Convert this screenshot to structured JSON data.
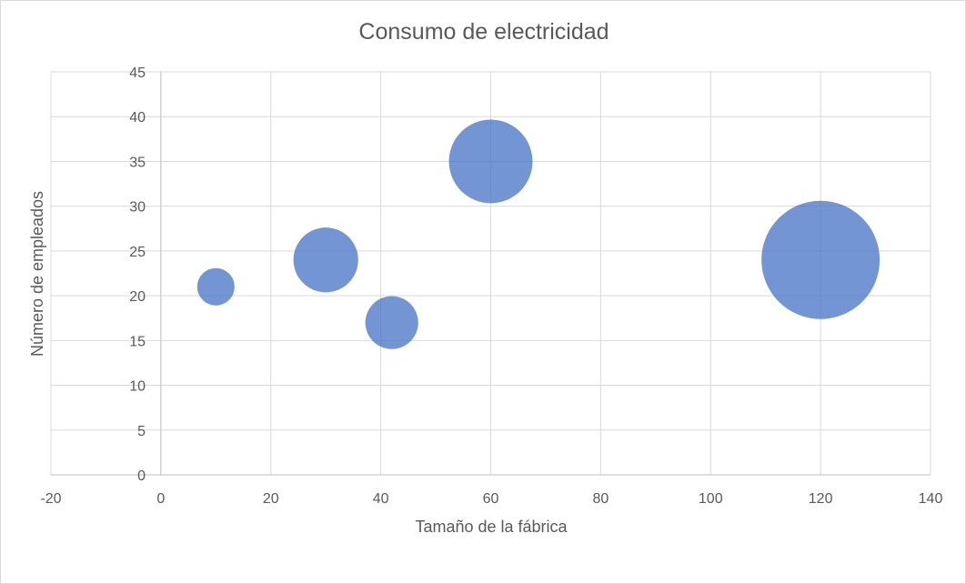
{
  "chart_data": {
    "type": "bubble",
    "title": "Consumo de electricidad",
    "xlabel": "Tamaño de la fábrica",
    "ylabel": "Número de empleados",
    "xlim": [
      -20,
      140
    ],
    "ylim": [
      0,
      45
    ],
    "x_ticks": [
      -20,
      0,
      20,
      40,
      60,
      80,
      100,
      120,
      140
    ],
    "y_ticks": [
      0,
      5,
      10,
      15,
      20,
      25,
      30,
      35,
      40,
      45
    ],
    "grid": true,
    "legend": "none",
    "bubble_color": "#4472c4",
    "points": [
      {
        "x": 10,
        "y": 21,
        "size": 10
      },
      {
        "x": 30,
        "y": 24,
        "size": 30
      },
      {
        "x": 42,
        "y": 17,
        "size": 20
      },
      {
        "x": 60,
        "y": 35,
        "size": 50
      },
      {
        "x": 120,
        "y": 24,
        "size": 100
      }
    ]
  }
}
